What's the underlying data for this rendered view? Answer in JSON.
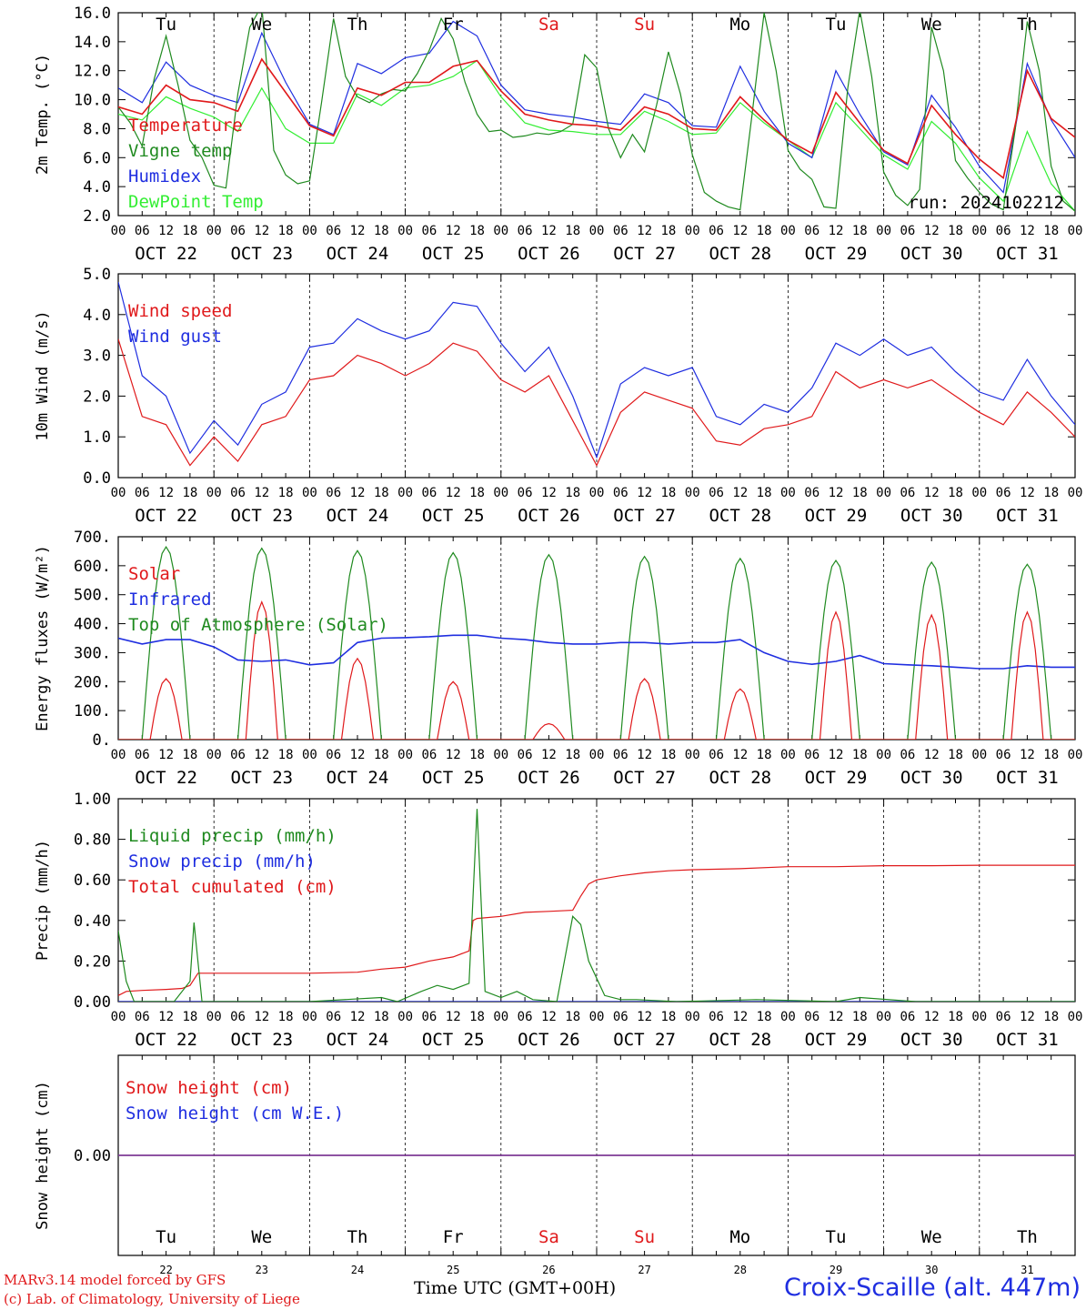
{
  "chart_data": [
    {
      "type": "line",
      "panel": "temperature",
      "ylabel": "2m Temp. (°C)",
      "ylim": [
        2.0,
        16.0
      ],
      "yticks": [
        "2.0",
        "4.0",
        "6.0",
        "8.0",
        "10.0",
        "12.0",
        "14.0",
        "16.0"
      ],
      "xlim_hours": [
        0,
        240
      ],
      "run_label": "run: 2024102212",
      "day_names": [
        "Tu",
        "We",
        "Th",
        "Fr",
        "Sa",
        "Su",
        "Mo",
        "Tu",
        "We",
        "Th"
      ],
      "series": [
        {
          "name": "Temperature",
          "color": "#e0191b",
          "x": [
            0,
            6,
            12,
            18,
            24,
            30,
            36,
            42,
            48,
            54,
            60,
            66,
            72,
            78,
            84,
            90,
            96,
            102,
            108,
            114,
            120,
            126,
            132,
            138,
            144,
            150,
            156,
            162,
            168,
            174,
            180,
            186,
            192,
            198,
            204,
            210,
            216,
            222,
            228,
            234,
            240
          ],
          "y": [
            9.5,
            9.0,
            11.0,
            10.0,
            9.8,
            9.2,
            12.8,
            10.5,
            8.2,
            7.5,
            10.8,
            10.3,
            11.2,
            11.2,
            12.3,
            12.7,
            10.6,
            9.0,
            8.6,
            8.3,
            8.2,
            7.9,
            9.5,
            9.0,
            8.0,
            7.9,
            10.2,
            8.6,
            7.2,
            6.3,
            10.5,
            8.4,
            6.5,
            5.6,
            9.6,
            7.6,
            5.9,
            4.6,
            12.0,
            8.7,
            7.4
          ]
        },
        {
          "name": "Vigne temp",
          "color": "#1f8a1f",
          "x": [
            0,
            3,
            6,
            9,
            12,
            15,
            18,
            21,
            24,
            27,
            30,
            33,
            36,
            39,
            42,
            45,
            48,
            51,
            54,
            57,
            60,
            63,
            66,
            69,
            72,
            75,
            78,
            81,
            84,
            87,
            90,
            93,
            96,
            99,
            102,
            105,
            108,
            111,
            114,
            117,
            120,
            123,
            126,
            129,
            132,
            135,
            138,
            141,
            144,
            147,
            150,
            153,
            156,
            159,
            162,
            165,
            168,
            171,
            174,
            177,
            180,
            183,
            186,
            189,
            192,
            195,
            198,
            201,
            204,
            207,
            210,
            213,
            216,
            219,
            222,
            225,
            228,
            231,
            234,
            237,
            240
          ],
          "y": [
            9.5,
            8.4,
            6.8,
            11.4,
            14.4,
            11.0,
            7.2,
            6.0,
            4.1,
            3.9,
            10.4,
            15.0,
            16.5,
            6.5,
            4.8,
            4.2,
            4.4,
            9.8,
            15.6,
            11.6,
            10.2,
            9.8,
            10.4,
            10.7,
            10.6,
            11.8,
            13.4,
            15.6,
            14.2,
            11.2,
            9.0,
            7.8,
            7.9,
            7.4,
            7.5,
            7.7,
            7.6,
            7.8,
            8.3,
            13.1,
            12.2,
            8.0,
            6.0,
            7.6,
            6.4,
            9.6,
            13.3,
            10.4,
            6.2,
            3.6,
            3.0,
            2.6,
            2.4,
            9.0,
            16.0,
            12.0,
            6.5,
            5.2,
            4.5,
            2.6,
            2.5,
            10.8,
            16.2,
            11.6,
            5.0,
            3.4,
            2.7,
            3.8,
            15.0,
            12.0,
            5.8,
            4.6,
            3.6,
            2.8,
            2.4,
            8.0,
            15.4,
            12.0,
            5.4,
            3.0,
            2.3
          ]
        },
        {
          "name": "Humidex",
          "color": "#1f2ee0",
          "x": [
            0,
            6,
            12,
            18,
            24,
            30,
            36,
            42,
            48,
            54,
            60,
            66,
            72,
            78,
            84,
            90,
            96,
            102,
            108,
            114,
            120,
            126,
            132,
            138,
            144,
            150,
            156,
            162,
            168,
            174,
            180,
            186,
            192,
            198,
            204,
            210,
            216,
            222,
            228,
            234,
            240
          ],
          "y": [
            10.8,
            9.8,
            12.6,
            11.0,
            10.3,
            9.8,
            14.6,
            11.2,
            8.3,
            7.6,
            12.5,
            11.8,
            12.9,
            13.2,
            15.4,
            14.4,
            11.0,
            9.3,
            9.0,
            8.8,
            8.5,
            8.3,
            10.4,
            9.8,
            8.2,
            8.1,
            12.3,
            9.2,
            7.0,
            6.0,
            12.0,
            9.0,
            6.4,
            5.5,
            10.3,
            8.1,
            5.4,
            3.6,
            12.5,
            8.6,
            6.0
          ]
        },
        {
          "name": "DewPoint Temp",
          "color": "#33ee33",
          "x": [
            0,
            6,
            12,
            18,
            24,
            30,
            36,
            42,
            48,
            54,
            60,
            66,
            72,
            78,
            84,
            90,
            96,
            102,
            108,
            114,
            120,
            126,
            132,
            138,
            144,
            150,
            156,
            162,
            168,
            174,
            180,
            186,
            192,
            198,
            204,
            210,
            216,
            222,
            228,
            234,
            240
          ],
          "y": [
            9.0,
            8.6,
            10.2,
            9.4,
            8.8,
            7.8,
            10.8,
            8.0,
            7.0,
            7.0,
            10.4,
            9.6,
            10.8,
            11.0,
            11.6,
            12.7,
            10.2,
            8.4,
            7.9,
            7.8,
            7.6,
            7.6,
            9.2,
            8.5,
            7.6,
            7.7,
            9.8,
            8.4,
            7.2,
            6.0,
            9.8,
            8.0,
            6.2,
            5.2,
            8.5,
            7.0,
            4.6,
            3.0,
            7.8,
            4.2,
            2.3
          ]
        }
      ]
    },
    {
      "type": "line",
      "panel": "wind",
      "ylabel": "10m Wind (m/s)",
      "ylim": [
        0.0,
        5.0
      ],
      "yticks": [
        "0.0",
        "1.0",
        "2.0",
        "3.0",
        "4.0",
        "5.0"
      ],
      "xlim_hours": [
        0,
        240
      ],
      "series": [
        {
          "name": "Wind speed",
          "color": "#e0191b",
          "x": [
            0,
            6,
            12,
            18,
            24,
            30,
            36,
            42,
            48,
            54,
            60,
            66,
            72,
            78,
            84,
            90,
            96,
            102,
            108,
            114,
            120,
            126,
            132,
            138,
            144,
            150,
            156,
            162,
            168,
            174,
            180,
            186,
            192,
            198,
            204,
            210,
            216,
            222,
            228,
            234,
            240
          ],
          "y": [
            3.4,
            1.5,
            1.3,
            0.3,
            1.0,
            0.4,
            1.3,
            1.5,
            2.4,
            2.5,
            3.0,
            2.8,
            2.5,
            2.8,
            3.3,
            3.1,
            2.4,
            2.1,
            2.5,
            1.4,
            0.3,
            1.6,
            2.1,
            1.9,
            1.7,
            0.9,
            0.8,
            1.2,
            1.3,
            1.5,
            2.6,
            2.2,
            2.4,
            2.2,
            2.4,
            2.0,
            1.6,
            1.3,
            2.1,
            1.6,
            1.0
          ]
        },
        {
          "name": "Wind gust",
          "color": "#1f2ee0",
          "x": [
            0,
            6,
            12,
            18,
            24,
            30,
            36,
            42,
            48,
            54,
            60,
            66,
            72,
            78,
            84,
            90,
            96,
            102,
            108,
            114,
            120,
            126,
            132,
            138,
            144,
            150,
            156,
            162,
            168,
            174,
            180,
            186,
            192,
            198,
            204,
            210,
            216,
            222,
            228,
            234,
            240
          ],
          "y": [
            4.8,
            2.5,
            2.0,
            0.6,
            1.4,
            0.8,
            1.8,
            2.1,
            3.2,
            3.3,
            3.9,
            3.6,
            3.4,
            3.6,
            4.3,
            4.2,
            3.3,
            2.6,
            3.2,
            2.0,
            0.5,
            2.3,
            2.7,
            2.5,
            2.7,
            1.5,
            1.3,
            1.8,
            1.6,
            2.2,
            3.3,
            3.0,
            3.4,
            3.0,
            3.2,
            2.6,
            2.1,
            1.9,
            2.9,
            2.0,
            1.3
          ]
        }
      ]
    },
    {
      "type": "line",
      "panel": "energy",
      "ylabel": "Energy fluxes (W/m²)",
      "ylim": [
        0,
        700
      ],
      "yticks": [
        "0.",
        "100.",
        "200.",
        "300.",
        "400.",
        "500.",
        "600.",
        "700."
      ],
      "xlim_hours": [
        0,
        240
      ],
      "series": [
        {
          "name": "Solar",
          "color": "#e0191b",
          "daily_peak": [
            210,
            475,
            280,
            200,
            55,
            210,
            175,
            440,
            430,
            440
          ]
        },
        {
          "name": "Infrared",
          "color": "#1f2ee0",
          "x": [
            0,
            6,
            12,
            18,
            24,
            30,
            36,
            42,
            48,
            54,
            60,
            66,
            72,
            78,
            84,
            90,
            96,
            102,
            108,
            114,
            120,
            126,
            132,
            138,
            144,
            150,
            156,
            162,
            168,
            174,
            180,
            186,
            192,
            198,
            204,
            210,
            216,
            222,
            228,
            234,
            240
          ],
          "y": [
            350,
            330,
            345,
            345,
            320,
            275,
            270,
            275,
            258,
            265,
            335,
            350,
            352,
            355,
            360,
            360,
            350,
            345,
            335,
            330,
            330,
            335,
            335,
            330,
            335,
            335,
            345,
            300,
            270,
            260,
            270,
            290,
            262,
            258,
            255,
            250,
            245,
            245,
            255,
            250,
            250
          ]
        },
        {
          "name": "Top of Atmosphere (Solar)",
          "color": "#1f8a1f",
          "daily_peak": [
            665,
            660,
            652,
            645,
            638,
            632,
            625,
            618,
            612,
            605
          ]
        }
      ]
    },
    {
      "type": "line",
      "panel": "precip",
      "ylabel": "Precip (mm/h)",
      "ylim": [
        0.0,
        1.0
      ],
      "yticks": [
        "0.00",
        "0.20",
        "0.40",
        "0.60",
        "0.80",
        "1.00"
      ],
      "xlim_hours": [
        0,
        240
      ],
      "series": [
        {
          "name": "Liquid precip (mm/h)",
          "color": "#1f8a1f",
          "x": [
            0,
            2,
            4,
            6,
            14,
            18,
            19,
            21,
            24,
            48,
            66,
            70,
            76,
            80,
            84,
            88,
            90,
            92,
            96,
            100,
            104,
            110,
            114,
            116,
            118,
            122,
            126,
            130,
            140,
            160,
            180,
            186,
            200,
            240
          ],
          "y": [
            0.35,
            0.1,
            0.0,
            0.0,
            0.0,
            0.1,
            0.39,
            0.0,
            0.0,
            0.0,
            0.02,
            0.0,
            0.05,
            0.08,
            0.06,
            0.09,
            0.95,
            0.05,
            0.02,
            0.05,
            0.01,
            0.0,
            0.42,
            0.38,
            0.2,
            0.03,
            0.01,
            0.01,
            0.0,
            0.01,
            0.0,
            0.02,
            0.0,
            0.0
          ]
        },
        {
          "name": "Snow precip (mm/h)",
          "color": "#1f2ee0",
          "x": [
            0,
            240
          ],
          "y": [
            0.0,
            0.0
          ]
        },
        {
          "name": "Total cumulated (cm)",
          "color": "#e0191b",
          "x": [
            0,
            2,
            6,
            12,
            16,
            18,
            20,
            24,
            36,
            48,
            60,
            66,
            72,
            78,
            84,
            88,
            89,
            90,
            96,
            102,
            108,
            114,
            116,
            118,
            120,
            126,
            132,
            138,
            144,
            156,
            168,
            180,
            192,
            204,
            216,
            228,
            240
          ],
          "y": [
            0.03,
            0.05,
            0.055,
            0.06,
            0.065,
            0.08,
            0.14,
            0.14,
            0.14,
            0.14,
            0.145,
            0.16,
            0.17,
            0.2,
            0.22,
            0.25,
            0.4,
            0.41,
            0.42,
            0.44,
            0.445,
            0.45,
            0.52,
            0.58,
            0.6,
            0.62,
            0.635,
            0.645,
            0.65,
            0.655,
            0.665,
            0.665,
            0.67,
            0.67,
            0.672,
            0.672,
            0.672
          ]
        }
      ]
    },
    {
      "type": "line",
      "panel": "snow",
      "ylabel": "Snow height (cm)",
      "yticks": [
        "0.00"
      ],
      "xlim_hours": [
        0,
        240
      ],
      "day_names": [
        "Tu",
        "We",
        "Th",
        "Fr",
        "Sa",
        "Su",
        "Mo",
        "Tu",
        "We",
        "Th"
      ],
      "day_numbers": [
        "22",
        "23",
        "24",
        "25",
        "26",
        "27",
        "28",
        "29",
        "30",
        "31"
      ],
      "series": [
        {
          "name": "Snow height (cm)",
          "color": "#e0191b",
          "x": [
            0,
            240
          ],
          "y": [
            0.0,
            0.0
          ]
        },
        {
          "name": "Snow height (cm W.E.)",
          "color": "#1f2ee0",
          "x": [
            0,
            240
          ],
          "y": [
            0.0,
            0.0
          ]
        }
      ]
    }
  ],
  "x_axis": {
    "hour_ticks": [
      "00",
      "06",
      "12",
      "18"
    ],
    "dates": [
      "OCT 22",
      "OCT 23",
      "OCT 24",
      "OCT 25",
      "OCT 26",
      "OCT 27",
      "OCT 28",
      "OCT 29",
      "OCT 30",
      "OCT 31"
    ],
    "weekend_color": "#e0191b"
  },
  "footer": {
    "credit_line1": "MARv3.14 model forced by GFS",
    "credit_line2": "(c) Lab. of Climatology, University of Liege",
    "time_label": "Time UTC (GMT+00H)",
    "station": "Croix-Scaille (alt. 447m)"
  }
}
